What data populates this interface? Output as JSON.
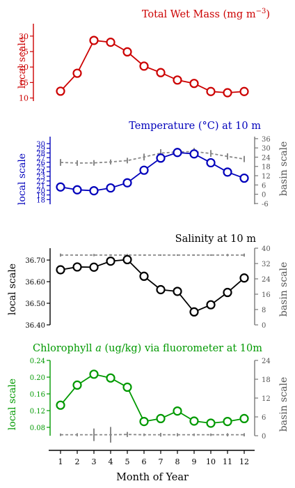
{
  "figure": {
    "x_label": "Month of Year",
    "x_ticks": [
      "1",
      "2",
      "3",
      "4",
      "5",
      "6",
      "7",
      "8",
      "9",
      "10",
      "11",
      "12"
    ]
  },
  "chart_data": [
    {
      "id": "mass",
      "type": "line",
      "title": "Total Wet Mass (mg m",
      "title_sup": "−3",
      "title_close": ")",
      "color": "#cc0000",
      "left_label": "local scale",
      "right_label": "",
      "left_ylim": [
        9,
        34
      ],
      "left_ticks": [
        "10",
        "15",
        "20",
        "25",
        "30"
      ],
      "right_ticks": [],
      "x": [
        1,
        2,
        3,
        4,
        5,
        6,
        7,
        8,
        9,
        10,
        11,
        12
      ],
      "series": [
        {
          "name": "local",
          "values": [
            12.2,
            18.0,
            28.6,
            28.0,
            24.9,
            20.3,
            18.2,
            15.8,
            14.7,
            12.1,
            11.7,
            12.1
          ]
        }
      ],
      "basin": null
    },
    {
      "id": "temp",
      "type": "line",
      "title": "Temperature (°C) at 10 m",
      "color": "#0000bb",
      "left_label": "local scale",
      "right_label": "basin scale",
      "left_ylim": [
        17.0,
        31.5
      ],
      "left_ticks": [
        "18",
        "19",
        "20",
        "21",
        "22",
        "23",
        "24",
        "25",
        "26",
        "27",
        "28",
        "29",
        "30"
      ],
      "right_ylim": [
        -6.5,
        37.3
      ],
      "right_ticks": [
        "-6",
        "0",
        "6",
        "12",
        "18",
        "24",
        "30",
        "36"
      ],
      "x": [
        1,
        2,
        3,
        4,
        5,
        6,
        7,
        8,
        9,
        10,
        11,
        12
      ],
      "series": [
        {
          "name": "local",
          "values": [
            20.7,
            20.1,
            19.9,
            20.5,
            21.6,
            24.3,
            26.9,
            28.1,
            27.8,
            25.9,
            23.9,
            22.6
          ]
        }
      ],
      "basin": {
        "values": [
          20.6,
          20.2,
          20.3,
          20.9,
          21.8,
          24.1,
          26.6,
          27.4,
          27.6,
          26.4,
          24.5,
          22.8
        ],
        "spread": [
          2.2,
          1.8,
          1.8,
          1.6,
          1.8,
          2.2,
          2.6,
          2.6,
          2.4,
          2.2,
          2.0,
          2.0
        ]
      }
    },
    {
      "id": "sal",
      "type": "line",
      "title": "Salinity at 10 m",
      "color": "#000000",
      "left_label": "local scale",
      "right_label": "basin scale",
      "left_ylim": [
        36.4,
        36.755
      ],
      "left_ticks": [
        "36.40",
        "36.50",
        "36.60",
        "36.70"
      ],
      "right_ylim": [
        0,
        40
      ],
      "right_ticks": [
        "0",
        "8",
        "16",
        "24",
        "32",
        "40"
      ],
      "x": [
        1,
        2,
        3,
        4,
        5,
        6,
        7,
        8,
        9,
        10,
        11,
        12
      ],
      "series": [
        {
          "name": "local",
          "values": [
            36.655,
            36.668,
            36.667,
            36.695,
            36.702,
            36.625,
            36.563,
            36.555,
            36.46,
            36.493,
            36.55,
            36.617
          ]
        }
      ],
      "basin": {
        "values": [
          36.4,
          36.4,
          36.4,
          36.4,
          36.4,
          36.4,
          36.4,
          36.4,
          36.4,
          36.4,
          36.4,
          36.4
        ],
        "spread": [
          0.8,
          0.4,
          0.6,
          0.4,
          0.6,
          0.4,
          0.4,
          0.4,
          0.4,
          0.4,
          0.6,
          0.8
        ]
      }
    },
    {
      "id": "chl",
      "type": "line",
      "title": "Chlorophyll",
      "title_italic": "a",
      "title_rest": "(ug/kg) via fluorometer at 10m",
      "color": "#009900",
      "left_label": "local scale",
      "right_label": "basin scale",
      "left_ylim": [
        0.06,
        0.24
      ],
      "left_ticks": [
        "0.08",
        "0.12",
        "0.16",
        "0.20",
        "0.24"
      ],
      "right_ylim": [
        0,
        24
      ],
      "right_ticks": [
        "0",
        "6",
        "12",
        "18",
        "24"
      ],
      "x": [
        1,
        2,
        3,
        4,
        5,
        6,
        7,
        8,
        9,
        10,
        11,
        12
      ],
      "series": [
        {
          "name": "local",
          "values": [
            0.133,
            0.181,
            0.207,
            0.198,
            0.176,
            0.094,
            0.101,
            0.119,
            0.095,
            0.09,
            0.094,
            0.101
          ]
        }
      ],
      "basin": {
        "values": [
          0.3,
          0.3,
          0.3,
          0.3,
          0.4,
          0.3,
          0.3,
          0.3,
          0.3,
          0.3,
          0.3,
          0.3
        ],
        "spread": [
          0.4,
          0.5,
          2.0,
          2.5,
          0.8,
          0.4,
          0.6,
          0.5,
          0.4,
          0.4,
          0.5,
          0.5
        ]
      }
    }
  ]
}
